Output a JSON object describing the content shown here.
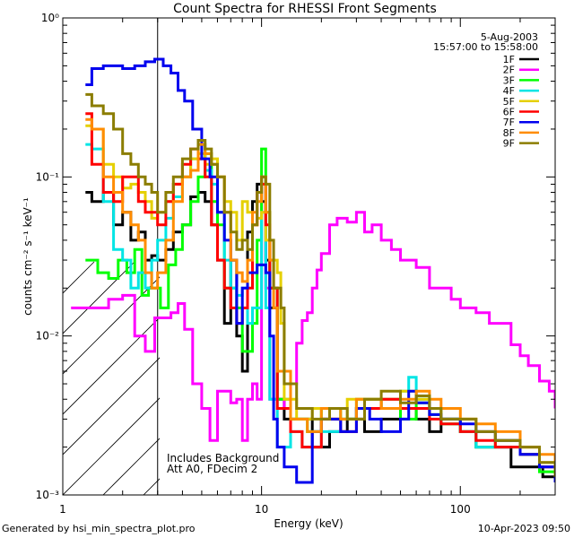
{
  "chart_data": {
    "type": "line",
    "title": "Count Spectra for RHESSI Front Segments",
    "xlabel": "Energy (keV)",
    "ylabel": "counts cm⁻² s⁻¹ keV⁻¹",
    "x_scale": "log",
    "y_scale": "log",
    "xlim": [
      1.0,
      300.0
    ],
    "ylim": [
      0.001,
      1.0
    ],
    "x_ticks": [
      {
        "value": 1,
        "label": "1"
      },
      {
        "value": 10,
        "label": "10"
      },
      {
        "value": 100,
        "label": "100"
      }
    ],
    "y_ticks": [
      {
        "value": 1,
        "label": "10⁰"
      },
      {
        "value": 0.1,
        "label": "10⁻¹"
      },
      {
        "value": 0.01,
        "label": "10⁻²"
      },
      {
        "value": 0.001,
        "label": "10⁻³"
      }
    ],
    "date": "5-Aug-2003",
    "time_range": "15:57:00 to 15:58:00",
    "annotation_lines": [
      "Includes Background",
      "Att A0, FDecim 2"
    ],
    "hatched_region_below_keV": 3.0,
    "series": [
      {
        "name": "1F",
        "color": "#000000",
        "x": [
          1.3,
          1.4,
          1.6,
          1.8,
          2.0,
          2.2,
          2.4,
          2.6,
          2.8,
          3.0,
          3.3,
          3.6,
          4.0,
          4.4,
          4.8,
          5.2,
          5.6,
          6.0,
          6.5,
          7.0,
          7.5,
          8.0,
          8.5,
          9.0,
          9.5,
          10,
          10.5,
          11,
          12,
          13,
          15,
          18,
          22,
          27,
          33,
          40,
          50,
          60,
          70,
          80,
          100,
          120,
          150,
          180,
          220,
          260,
          300
        ],
        "y": [
          0.08,
          0.07,
          0.08,
          0.05,
          0.06,
          0.04,
          0.045,
          0.03,
          0.032,
          0.03,
          0.035,
          0.045,
          0.05,
          0.075,
          0.08,
          0.07,
          0.05,
          0.03,
          0.012,
          0.03,
          0.01,
          0.006,
          0.045,
          0.07,
          0.09,
          0.07,
          0.03,
          0.015,
          0.004,
          0.003,
          0.003,
          0.002,
          0.0025,
          0.003,
          0.0025,
          0.003,
          0.0035,
          0.003,
          0.0025,
          0.003,
          0.0025,
          0.002,
          0.002,
          0.0015,
          0.0015,
          0.0013,
          0.0012
        ]
      },
      {
        "name": "2F",
        "color": "#ff00ff",
        "x": [
          1.1,
          1.4,
          1.7,
          2.0,
          2.3,
          2.6,
          2.9,
          3.2,
          3.5,
          3.8,
          4.1,
          4.5,
          5.0,
          5.5,
          6.0,
          6.5,
          7.0,
          7.5,
          8.0,
          8.5,
          9.0,
          9.5,
          10,
          10.5,
          11,
          12,
          13,
          14,
          15,
          16,
          17,
          18,
          19,
          20,
          22,
          24,
          27,
          30,
          33,
          36,
          40,
          45,
          50,
          55,
          60,
          70,
          80,
          90,
          100,
          120,
          140,
          160,
          180,
          200,
          220,
          250,
          280,
          300
        ],
        "y": [
          0.015,
          0.015,
          0.017,
          0.018,
          0.01,
          0.008,
          0.013,
          0.013,
          0.014,
          0.016,
          0.011,
          0.005,
          0.0035,
          0.0022,
          0.0045,
          0.0045,
          0.0038,
          0.004,
          0.0022,
          0.004,
          0.005,
          0.004,
          0.1,
          0.02,
          0.004,
          0.004,
          0.0035,
          0.005,
          0.009,
          0.0125,
          0.014,
          0.02,
          0.026,
          0.033,
          0.05,
          0.055,
          0.052,
          0.06,
          0.045,
          0.05,
          0.04,
          0.035,
          0.03,
          0.03,
          0.027,
          0.02,
          0.02,
          0.017,
          0.015,
          0.014,
          0.012,
          0.012,
          0.0088,
          0.0075,
          0.0065,
          0.0052,
          0.0045,
          0.0035
        ]
      },
      {
        "name": "3F",
        "color": "#00ff00",
        "x": [
          1.3,
          1.5,
          1.7,
          1.9,
          2.1,
          2.3,
          2.5,
          2.7,
          2.9,
          3.1,
          3.4,
          3.7,
          4.0,
          4.4,
          4.8,
          5.2,
          5.6,
          6.0,
          6.5,
          7.0,
          7.5,
          8.0,
          9.0,
          9.5,
          10,
          10.5,
          11,
          12,
          14,
          17,
          20,
          25,
          30,
          40,
          50,
          60,
          70,
          80,
          100,
          120,
          150,
          200,
          250,
          300
        ],
        "y": [
          0.03,
          0.025,
          0.023,
          0.03,
          0.025,
          0.035,
          0.018,
          0.02,
          0.02,
          0.015,
          0.028,
          0.035,
          0.05,
          0.07,
          0.1,
          0.14,
          0.07,
          0.05,
          0.02,
          0.02,
          0.015,
          0.008,
          0.012,
          0.04,
          0.15,
          0.06,
          0.02,
          0.004,
          0.003,
          0.0025,
          0.0035,
          0.003,
          0.004,
          0.0035,
          0.003,
          0.0038,
          0.0032,
          0.0028,
          0.0025,
          0.002,
          0.0022,
          0.0018,
          0.0014,
          0.0012
        ]
      },
      {
        "name": "4F",
        "color": "#00e5e5",
        "x": [
          1.3,
          1.4,
          1.6,
          1.8,
          2.0,
          2.2,
          2.4,
          2.6,
          2.8,
          3.0,
          3.3,
          3.6,
          4.0,
          4.4,
          4.8,
          5.2,
          5.6,
          6.0,
          6.5,
          7.0,
          7.5,
          8.0,
          8.5,
          9.0,
          10,
          10.5,
          11,
          12,
          14,
          16,
          20,
          25,
          30,
          40,
          50,
          55,
          60,
          70,
          80,
          100,
          120,
          150,
          200,
          250,
          300
        ],
        "y": [
          0.16,
          0.15,
          0.07,
          0.035,
          0.03,
          0.02,
          0.025,
          0.02,
          0.03,
          0.04,
          0.055,
          0.075,
          0.1,
          0.13,
          0.16,
          0.11,
          0.09,
          0.06,
          0.03,
          0.02,
          0.018,
          0.02,
          0.012,
          0.015,
          0.06,
          0.015,
          0.004,
          0.002,
          0.0025,
          0.002,
          0.0025,
          0.003,
          0.0035,
          0.004,
          0.0045,
          0.0055,
          0.004,
          0.0035,
          0.003,
          0.0025,
          0.002,
          0.002,
          0.0018,
          0.0015,
          0.0012
        ]
      },
      {
        "name": "5F",
        "color": "#e5d000",
        "x": [
          1.3,
          1.4,
          1.6,
          1.8,
          2.0,
          2.2,
          2.4,
          2.6,
          2.8,
          3.0,
          3.3,
          3.6,
          4.0,
          4.4,
          4.8,
          5.2,
          5.6,
          6.0,
          6.5,
          7.0,
          7.5,
          8.0,
          8.5,
          9.0,
          9.5,
          10,
          10.5,
          11,
          11.5,
          12,
          12.5,
          13,
          15,
          18,
          22,
          27,
          33,
          40,
          50,
          60,
          70,
          80,
          100,
          120,
          150,
          200,
          250,
          300
        ],
        "y": [
          0.21,
          0.2,
          0.12,
          0.1,
          0.085,
          0.09,
          0.08,
          0.07,
          0.055,
          0.06,
          0.07,
          0.09,
          0.1,
          0.13,
          0.14,
          0.12,
          0.13,
          0.1,
          0.07,
          0.06,
          0.04,
          0.07,
          0.06,
          0.05,
          0.055,
          0.06,
          0.04,
          0.03,
          0.03,
          0.025,
          0.012,
          0.004,
          0.003,
          0.0035,
          0.003,
          0.004,
          0.0035,
          0.004,
          0.0045,
          0.004,
          0.0035,
          0.003,
          0.003,
          0.0025,
          0.0022,
          0.002,
          0.0016,
          0.0013
        ]
      },
      {
        "name": "6F",
        "color": "#ff0000",
        "x": [
          1.3,
          1.4,
          1.6,
          1.8,
          2.0,
          2.2,
          2.4,
          2.6,
          2.8,
          3.0,
          3.3,
          3.6,
          4.0,
          4.4,
          4.8,
          5.2,
          5.6,
          6.0,
          6.5,
          7.0,
          7.5,
          8.0,
          8.5,
          9.0,
          9.5,
          10,
          10.5,
          11,
          12,
          14,
          16,
          20,
          25,
          30,
          40,
          50,
          60,
          70,
          80,
          100,
          120,
          150,
          200,
          250,
          300
        ],
        "y": [
          0.25,
          0.12,
          0.08,
          0.07,
          0.1,
          0.1,
          0.07,
          0.06,
          0.06,
          0.05,
          0.07,
          0.09,
          0.12,
          0.15,
          0.13,
          0.1,
          0.05,
          0.03,
          0.02,
          0.015,
          0.012,
          0.015,
          0.02,
          0.05,
          0.08,
          0.09,
          0.05,
          0.02,
          0.0035,
          0.0025,
          0.002,
          0.003,
          0.0025,
          0.0035,
          0.004,
          0.0035,
          0.0035,
          0.003,
          0.0028,
          0.0025,
          0.0022,
          0.002,
          0.0018,
          0.0015,
          0.0013
        ]
      },
      {
        "name": "7F",
        "color": "#0000ee",
        "x": [
          1.3,
          1.4,
          1.6,
          1.8,
          2.0,
          2.3,
          2.6,
          2.9,
          3.2,
          3.5,
          3.8,
          4.1,
          4.5,
          5.0,
          5.5,
          6.0,
          6.5,
          7.0,
          7.5,
          8.0,
          8.5,
          9.0,
          9.5,
          10,
          10.5,
          11,
          11.5,
          12,
          13,
          15,
          18,
          20,
          25,
          30,
          35,
          40,
          50,
          55,
          60,
          70,
          80,
          100,
          120,
          150,
          200,
          250,
          300
        ],
        "y": [
          0.38,
          0.48,
          0.5,
          0.5,
          0.48,
          0.5,
          0.53,
          0.55,
          0.5,
          0.45,
          0.35,
          0.3,
          0.2,
          0.13,
          0.1,
          0.06,
          0.04,
          0.03,
          0.012,
          0.02,
          0.025,
          0.025,
          0.028,
          0.028,
          0.025,
          0.01,
          0.003,
          0.002,
          0.0015,
          0.0012,
          0.0025,
          0.003,
          0.0025,
          0.0035,
          0.003,
          0.0025,
          0.003,
          0.0045,
          0.0038,
          0.0032,
          0.003,
          0.0028,
          0.0025,
          0.0022,
          0.0018,
          0.0015,
          0.0012
        ]
      },
      {
        "name": "8F",
        "color": "#ff8c00",
        "x": [
          1.3,
          1.4,
          1.6,
          1.8,
          2.0,
          2.2,
          2.4,
          2.6,
          2.8,
          3.0,
          3.3,
          3.6,
          4.0,
          4.4,
          4.8,
          5.2,
          5.6,
          6.0,
          6.5,
          7.0,
          7.5,
          8.0,
          8.5,
          9.0,
          9.5,
          10,
          10.5,
          11,
          11.5,
          12,
          14,
          17,
          20,
          25,
          30,
          40,
          50,
          60,
          70,
          80,
          100,
          120,
          150,
          200,
          250,
          300
        ],
        "y": [
          0.23,
          0.2,
          0.1,
          0.08,
          0.06,
          0.05,
          0.04,
          0.025,
          0.02,
          0.025,
          0.04,
          0.07,
          0.1,
          0.11,
          0.16,
          0.14,
          0.12,
          0.1,
          0.06,
          0.03,
          0.025,
          0.022,
          0.03,
          0.06,
          0.07,
          0.1,
          0.06,
          0.03,
          0.015,
          0.006,
          0.003,
          0.0025,
          0.0035,
          0.003,
          0.004,
          0.0035,
          0.004,
          0.0045,
          0.004,
          0.0035,
          0.003,
          0.0028,
          0.0025,
          0.002,
          0.0018,
          0.0014
        ]
      },
      {
        "name": "9F",
        "color": "#8b7d00",
        "x": [
          1.3,
          1.4,
          1.6,
          1.8,
          2.0,
          2.2,
          2.4,
          2.6,
          2.8,
          3.0,
          3.3,
          3.6,
          4.0,
          4.4,
          4.8,
          5.2,
          5.6,
          6.0,
          6.5,
          7.0,
          7.5,
          8.0,
          8.5,
          9.0,
          9.5,
          10,
          10.5,
          11,
          11.5,
          12,
          12.5,
          13,
          15,
          18,
          22,
          27,
          33,
          40,
          50,
          60,
          70,
          80,
          100,
          120,
          150,
          200,
          250,
          300
        ],
        "y": [
          0.33,
          0.28,
          0.25,
          0.2,
          0.14,
          0.12,
          0.1,
          0.09,
          0.08,
          0.06,
          0.08,
          0.1,
          0.13,
          0.15,
          0.17,
          0.15,
          0.12,
          0.1,
          0.06,
          0.045,
          0.035,
          0.04,
          0.035,
          0.05,
          0.08,
          0.1,
          0.09,
          0.04,
          0.02,
          0.02,
          0.015,
          0.005,
          0.0035,
          0.003,
          0.0035,
          0.003,
          0.004,
          0.0045,
          0.0038,
          0.0042,
          0.0035,
          0.003,
          0.003,
          0.0025,
          0.0022,
          0.002,
          0.0016,
          0.0013
        ]
      }
    ]
  },
  "footer": {
    "generated_by": "Generated by hsi_min_spectra_plot.pro",
    "timestamp": "10-Apr-2023 09:50"
  }
}
